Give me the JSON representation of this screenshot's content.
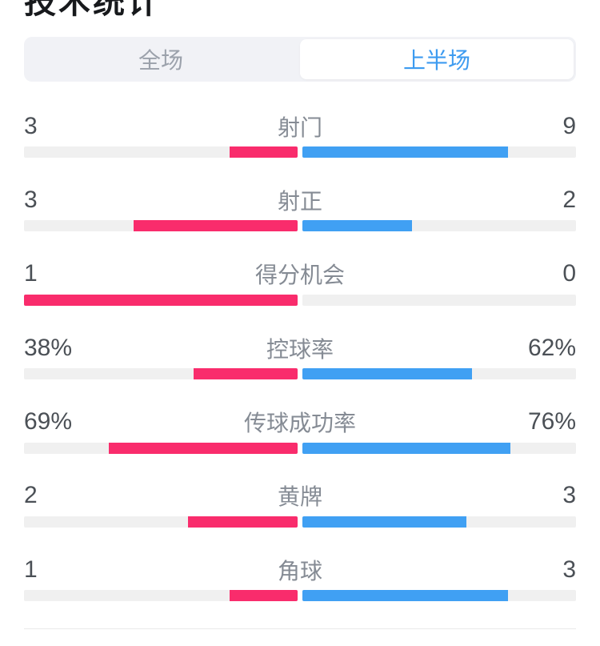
{
  "header": {
    "title": "技术统计"
  },
  "tabs": {
    "full": {
      "label": "全场",
      "active": false
    },
    "first_half": {
      "label": "上半场",
      "active": true
    }
  },
  "colors": {
    "home_bar": "#f92c6c",
    "away_bar": "#40a0f3",
    "track": "#f0f0f0",
    "active_tab_text": "#3d9bf0",
    "inactive_tab_text": "#9ba1ab"
  },
  "stats": [
    {
      "label": "射门",
      "home": "3",
      "away": "9",
      "home_pct": 25,
      "away_pct": 75
    },
    {
      "label": "射正",
      "home": "3",
      "away": "2",
      "home_pct": 60,
      "away_pct": 40
    },
    {
      "label": "得分机会",
      "home": "1",
      "away": "0",
      "home_pct": 100,
      "away_pct": 0
    },
    {
      "label": "控球率",
      "home": "38%",
      "away": "62%",
      "home_pct": 38,
      "away_pct": 62
    },
    {
      "label": "传球成功率",
      "home": "69%",
      "away": "76%",
      "home_pct": 69,
      "away_pct": 76
    },
    {
      "label": "黄牌",
      "home": "2",
      "away": "3",
      "home_pct": 40,
      "away_pct": 60
    },
    {
      "label": "角球",
      "home": "1",
      "away": "3",
      "home_pct": 25,
      "away_pct": 75
    }
  ]
}
